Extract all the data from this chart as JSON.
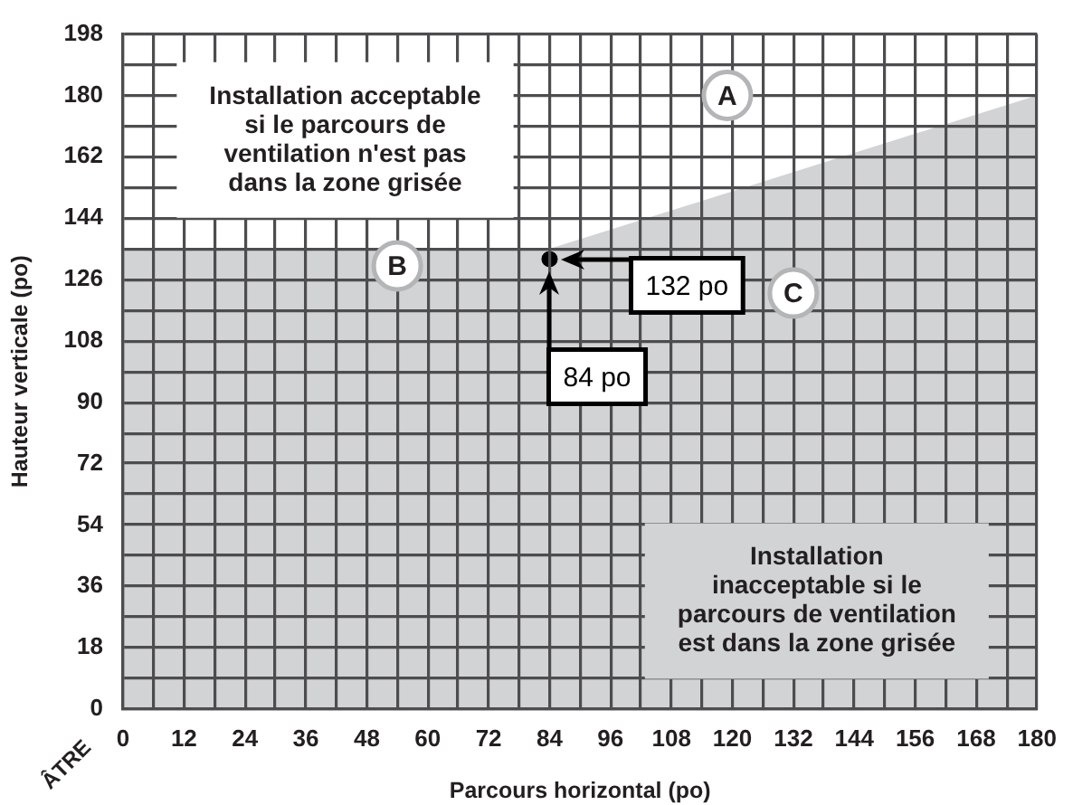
{
  "chart_data": {
    "type": "area",
    "xlabel": "Parcours horizontal (po)",
    "ylabel": "Hauteur verticale (po)",
    "xlim": [
      0,
      180
    ],
    "ylim": [
      0,
      198
    ],
    "xticks": [
      0,
      {
        "value": 6,
        "label": null
      },
      12,
      {
        "value": 18,
        "label": null
      },
      24,
      {
        "value": 30,
        "label": null
      },
      36,
      {
        "value": 42,
        "label": null
      },
      48,
      {
        "value": 54,
        "label": null
      },
      60,
      {
        "value": 66,
        "label": null
      },
      72,
      {
        "value": 78,
        "label": null
      },
      84,
      {
        "value": 90,
        "label": null
      },
      96,
      {
        "value": 102,
        "label": null
      },
      108,
      {
        "value": 114,
        "label": null
      },
      120,
      {
        "value": 126,
        "label": null
      },
      132,
      {
        "value": 138,
        "label": null
      },
      144,
      {
        "value": 150,
        "label": null
      },
      156,
      {
        "value": 162,
        "label": null
      },
      168,
      {
        "value": 174,
        "label": null
      },
      180
    ],
    "yticks": [
      0,
      {
        "value": 9,
        "label": null
      },
      18,
      {
        "value": 27,
        "label": null
      },
      36,
      {
        "value": 45,
        "label": null
      },
      54,
      {
        "value": 63,
        "label": null
      },
      72,
      {
        "value": 81,
        "label": null
      },
      90,
      {
        "value": 99,
        "label": null
      },
      108,
      {
        "value": 117,
        "label": null
      },
      126,
      {
        "value": 135,
        "label": null
      },
      144,
      {
        "value": 153,
        "label": null
      },
      162,
      {
        "value": 171,
        "label": null
      },
      180,
      {
        "value": 189,
        "label": null
      },
      198
    ],
    "grid": true,
    "series": [
      {
        "x": [
          0,
          84,
          180
        ],
        "values": [
          135,
          135,
          180
        ],
        "color": "#d1d3d4"
      },
      {
        "type": "scatter",
        "x": [
          84
        ],
        "values": [
          132
        ],
        "color": "#000000",
        "marker": "circle"
      }
    ],
    "annotations": [
      "Installation acceptable\nsi le parcours de\nventilation n'est pas\ndans la zone grisée",
      "Installation\ninacceptable si le\nparcours de ventilation\nest dans la zone grisée",
      {
        "text": "A",
        "x": 119,
        "y": 180
      },
      {
        "text": "B",
        "x": 54,
        "y": 130
      },
      {
        "text": "C",
        "x": 132,
        "y": 122
      },
      "84 po",
      "132 po",
      "ÂTRE"
    ]
  }
}
